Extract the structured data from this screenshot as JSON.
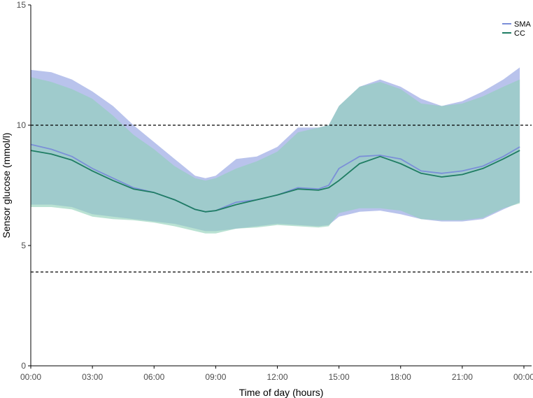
{
  "chart_data": {
    "type": "line",
    "xlabel": "Time of day (hours)",
    "ylabel": "Sensor glucose (mmol/l)",
    "xlim": [
      0,
      24
    ],
    "ylim": [
      0,
      15
    ],
    "x_ticks": [
      {
        "value": 0,
        "label": "00:00"
      },
      {
        "value": 3,
        "label": "03:00"
      },
      {
        "value": 6,
        "label": "06:00"
      },
      {
        "value": 9,
        "label": "09:00"
      },
      {
        "value": 12,
        "label": "12:00"
      },
      {
        "value": 15,
        "label": "15:00"
      },
      {
        "value": 18,
        "label": "18:00"
      },
      {
        "value": 21,
        "label": "21:00"
      },
      {
        "value": 24,
        "label": "00:00"
      }
    ],
    "y_ticks": [
      {
        "value": 0,
        "label": "0"
      },
      {
        "value": 5,
        "label": "5"
      },
      {
        "value": 10,
        "label": "10"
      },
      {
        "value": 15,
        "label": "15"
      }
    ],
    "reference_lines": [
      3.9,
      10
    ],
    "legend_position": "top-right",
    "x": [
      0,
      1,
      2,
      3,
      4,
      5,
      6,
      7,
      8,
      8.5,
      9,
      10,
      11,
      12,
      13,
      14,
      14.5,
      15,
      16,
      17,
      18,
      19,
      20,
      21,
      22,
      23,
      23.8
    ],
    "series": [
      {
        "name": "SMA",
        "color": "#7b8fd8",
        "band_color": "#b9c3ec",
        "median": [
          9.2,
          9.0,
          8.7,
          8.2,
          7.8,
          7.4,
          7.2,
          6.9,
          6.5,
          6.4,
          6.45,
          6.8,
          6.9,
          7.1,
          7.4,
          7.35,
          7.5,
          8.2,
          8.7,
          8.75,
          8.6,
          8.1,
          8.0,
          8.1,
          8.3,
          8.7,
          9.1
        ],
        "upper": [
          12.3,
          12.2,
          11.9,
          11.4,
          10.8,
          10.0,
          9.3,
          8.6,
          7.9,
          7.8,
          7.9,
          8.6,
          8.7,
          9.1,
          9.9,
          9.9,
          10.0,
          10.8,
          11.6,
          11.9,
          11.6,
          11.1,
          10.8,
          11.0,
          11.4,
          11.9,
          12.4
        ],
        "lower": [
          6.7,
          6.7,
          6.6,
          6.3,
          6.2,
          6.1,
          6.0,
          5.9,
          5.7,
          5.6,
          5.6,
          5.7,
          5.8,
          5.9,
          5.85,
          5.8,
          5.85,
          6.2,
          6.4,
          6.45,
          6.3,
          6.1,
          6.0,
          6.0,
          6.1,
          6.5,
          6.8
        ]
      },
      {
        "name": "CC",
        "color": "#1f7d63",
        "band_color": "#8fd0b8",
        "median": [
          8.95,
          8.8,
          8.55,
          8.1,
          7.7,
          7.35,
          7.2,
          6.9,
          6.5,
          6.4,
          6.45,
          6.7,
          6.9,
          7.1,
          7.35,
          7.3,
          7.4,
          7.7,
          8.4,
          8.7,
          8.4,
          8.0,
          7.85,
          7.95,
          8.2,
          8.6,
          8.95
        ],
        "upper": [
          12.0,
          11.8,
          11.5,
          11.1,
          10.4,
          9.6,
          9.0,
          8.3,
          7.8,
          7.7,
          7.8,
          8.2,
          8.5,
          8.9,
          9.7,
          9.9,
          10.0,
          10.8,
          11.6,
          11.8,
          11.5,
          10.9,
          10.8,
          10.9,
          11.2,
          11.6,
          11.9
        ],
        "lower": [
          6.6,
          6.6,
          6.5,
          6.2,
          6.1,
          6.05,
          5.95,
          5.8,
          5.6,
          5.5,
          5.5,
          5.7,
          5.75,
          5.85,
          5.8,
          5.75,
          5.8,
          6.35,
          6.55,
          6.55,
          6.45,
          6.1,
          6.05,
          6.05,
          6.15,
          6.55,
          6.75
        ]
      }
    ]
  }
}
